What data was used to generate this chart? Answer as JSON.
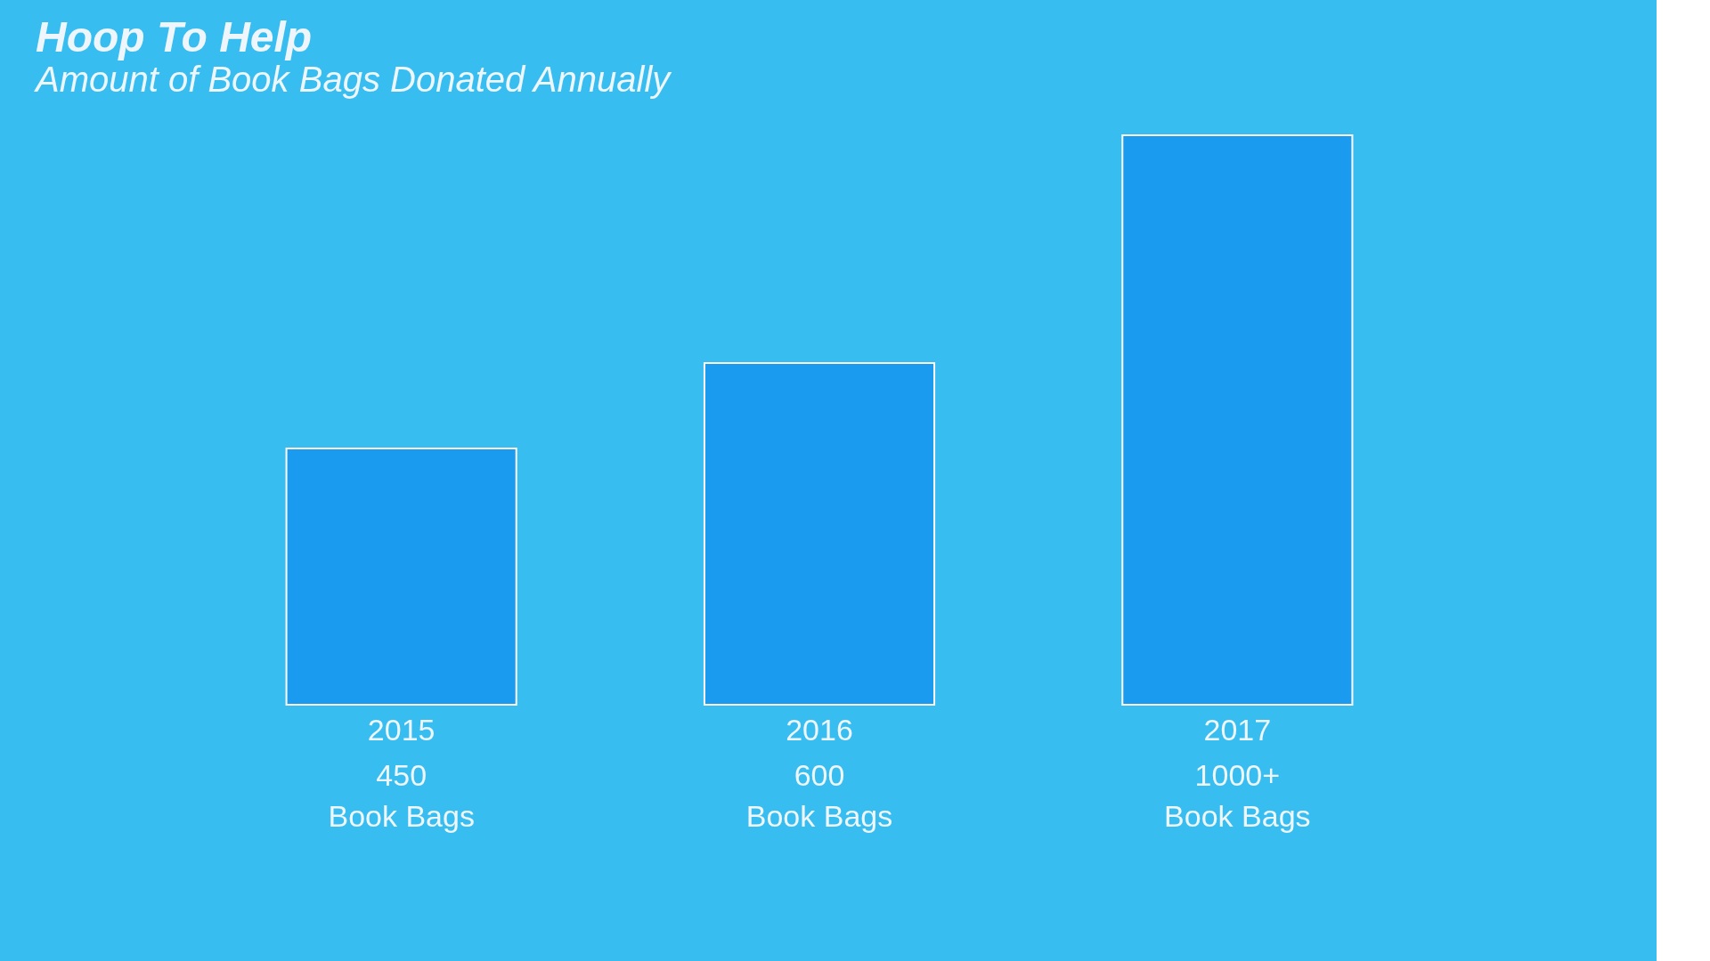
{
  "chart_data": {
    "type": "bar",
    "title": "Hoop To Help",
    "subtitle": "Amount of Book Bags Donated Annually",
    "categories": [
      "2015",
      "2016",
      "2017"
    ],
    "values": [
      450,
      600,
      1000
    ],
    "value_labels": [
      "450\nBook Bags",
      "600\nBook Bags",
      "1000+\nBook Bags"
    ],
    "color": "#1a9bef",
    "grid": false
  }
}
